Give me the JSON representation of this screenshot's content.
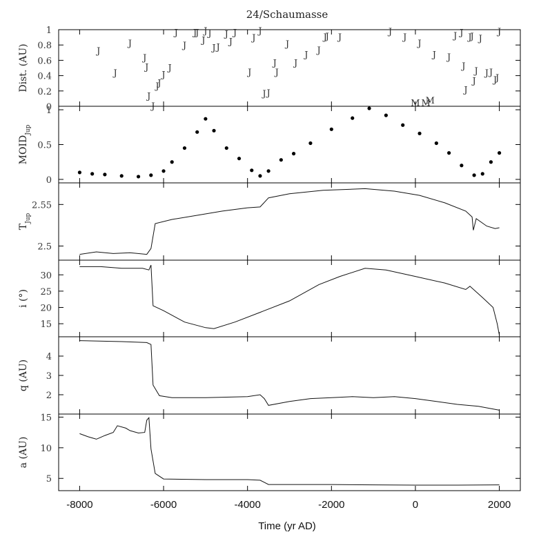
{
  "chart_data": {
    "type": "line",
    "title": "24/Schaumasse",
    "xlabel": "Time (yr AD)",
    "x_ticks": [
      "-8000",
      "-6000",
      "-4000",
      "-2000",
      "0",
      "2000"
    ],
    "xlim": [
      -8500,
      2500
    ],
    "panels": [
      {
        "id": "dist",
        "ylabel": "Dist. (AU)",
        "ylim": [
          0,
          1
        ],
        "yticks": [
          "0",
          "0.2",
          "0.4",
          "0.6",
          "0.8",
          "1"
        ],
        "encounters": [
          {
            "x": -7550,
            "y": 0.73,
            "label": "J"
          },
          {
            "x": -7150,
            "y": 0.44,
            "label": "J"
          },
          {
            "x": -6800,
            "y": 0.83,
            "label": "J"
          },
          {
            "x": -6450,
            "y": 0.64,
            "label": "J"
          },
          {
            "x": -6400,
            "y": 0.52,
            "label": "J"
          },
          {
            "x": -6350,
            "y": 0.14,
            "label": "J"
          },
          {
            "x": -6250,
            "y": 0.01,
            "label": "J"
          },
          {
            "x": -6150,
            "y": 0.27,
            "label": "J"
          },
          {
            "x": -6100,
            "y": 0.31,
            "label": "J"
          },
          {
            "x": -6000,
            "y": 0.42,
            "label": "J"
          },
          {
            "x": -5850,
            "y": 0.51,
            "label": "J"
          },
          {
            "x": -5700,
            "y": 0.97,
            "label": "J"
          },
          {
            "x": -5500,
            "y": 0.8,
            "label": "J"
          },
          {
            "x": -5250,
            "y": 0.97,
            "label": "J"
          },
          {
            "x": -5200,
            "y": 0.97,
            "label": "J"
          },
          {
            "x": -5050,
            "y": 0.87,
            "label": "J"
          },
          {
            "x": -5000,
            "y": 0.99,
            "label": "J"
          },
          {
            "x": -4900,
            "y": 0.96,
            "label": "J"
          },
          {
            "x": -4800,
            "y": 0.77,
            "label": "J"
          },
          {
            "x": -4700,
            "y": 0.78,
            "label": "J"
          },
          {
            "x": -4500,
            "y": 0.95,
            "label": "J"
          },
          {
            "x": -4400,
            "y": 0.85,
            "label": "J"
          },
          {
            "x": -4300,
            "y": 0.97,
            "label": "J"
          },
          {
            "x": -3950,
            "y": 0.45,
            "label": "J"
          },
          {
            "x": -3850,
            "y": 0.9,
            "label": "J"
          },
          {
            "x": -3700,
            "y": 0.99,
            "label": "J"
          },
          {
            "x": -3600,
            "y": 0.17,
            "label": "J"
          },
          {
            "x": -3500,
            "y": 0.18,
            "label": "J"
          },
          {
            "x": -3350,
            "y": 0.57,
            "label": "J"
          },
          {
            "x": -3300,
            "y": 0.45,
            "label": "J"
          },
          {
            "x": -3050,
            "y": 0.82,
            "label": "J"
          },
          {
            "x": -2850,
            "y": 0.57,
            "label": "J"
          },
          {
            "x": -2600,
            "y": 0.68,
            "label": "J"
          },
          {
            "x": -2300,
            "y": 0.74,
            "label": "J"
          },
          {
            "x": -2150,
            "y": 0.91,
            "label": "J"
          },
          {
            "x": -2100,
            "y": 0.92,
            "label": "J"
          },
          {
            "x": -1800,
            "y": 0.91,
            "label": "J"
          },
          {
            "x": -600,
            "y": 0.98,
            "label": "J"
          },
          {
            "x": -250,
            "y": 0.91,
            "label": "J"
          },
          {
            "x": 0,
            "y": 0.05,
            "label": "M"
          },
          {
            "x": 100,
            "y": 0.83,
            "label": "J"
          },
          {
            "x": 250,
            "y": 0.05,
            "label": "M"
          },
          {
            "x": 350,
            "y": 0.08,
            "label": "M"
          },
          {
            "x": 450,
            "y": 0.68,
            "label": "J"
          },
          {
            "x": 800,
            "y": 0.65,
            "label": "J"
          },
          {
            "x": 950,
            "y": 0.93,
            "label": "J"
          },
          {
            "x": 1100,
            "y": 0.97,
            "label": "J"
          },
          {
            "x": 1150,
            "y": 0.53,
            "label": "J"
          },
          {
            "x": 1200,
            "y": 0.22,
            "label": "J"
          },
          {
            "x": 1300,
            "y": 0.91,
            "label": "J"
          },
          {
            "x": 1350,
            "y": 0.92,
            "label": "J"
          },
          {
            "x": 1400,
            "y": 0.34,
            "label": "J"
          },
          {
            "x": 1450,
            "y": 0.47,
            "label": "J"
          },
          {
            "x": 1550,
            "y": 0.89,
            "label": "J"
          },
          {
            "x": 1700,
            "y": 0.44,
            "label": "J"
          },
          {
            "x": 1800,
            "y": 0.45,
            "label": "J"
          },
          {
            "x": 1900,
            "y": 0.35,
            "label": "J"
          },
          {
            "x": 1950,
            "y": 0.38,
            "label": "J"
          },
          {
            "x": 2000,
            "y": 0.98,
            "label": "J"
          }
        ]
      },
      {
        "id": "moid",
        "ylabel": "MOID",
        "ylabel_sub": "Jup",
        "ylim": [
          -0.05,
          1.05
        ],
        "yticks": [
          "0",
          "0.5",
          "1"
        ],
        "style": "points",
        "points": [
          [
            -8000,
            0.1
          ],
          [
            -7700,
            0.08
          ],
          [
            -7400,
            0.07
          ],
          [
            -7000,
            0.05
          ],
          [
            -6600,
            0.04
          ],
          [
            -6300,
            0.06
          ],
          [
            -6000,
            0.12
          ],
          [
            -5800,
            0.25
          ],
          [
            -5500,
            0.45
          ],
          [
            -5200,
            0.68
          ],
          [
            -5000,
            0.87
          ],
          [
            -4800,
            0.7
          ],
          [
            -4500,
            0.45
          ],
          [
            -4200,
            0.3
          ],
          [
            -3900,
            0.13
          ],
          [
            -3700,
            0.05
          ],
          [
            -3500,
            0.12
          ],
          [
            -3200,
            0.28
          ],
          [
            -2900,
            0.37
          ],
          [
            -2500,
            0.52
          ],
          [
            -2000,
            0.72
          ],
          [
            -1500,
            0.88
          ],
          [
            -1100,
            1.02
          ],
          [
            -700,
            0.92
          ],
          [
            -300,
            0.78
          ],
          [
            100,
            0.66
          ],
          [
            500,
            0.52
          ],
          [
            800,
            0.38
          ],
          [
            1100,
            0.2
          ],
          [
            1400,
            0.06
          ],
          [
            1600,
            0.08
          ],
          [
            1800,
            0.25
          ],
          [
            2000,
            0.38
          ]
        ]
      },
      {
        "id": "tjup",
        "ylabel": "T",
        "ylabel_sub": "Jup",
        "ylim": [
          2.483,
          2.576
        ],
        "yticks": [
          "2.5",
          "2.55"
        ],
        "style": "line",
        "points": [
          [
            -8000,
            2.49
          ],
          [
            -7600,
            2.493
          ],
          [
            -7200,
            2.491
          ],
          [
            -6800,
            2.492
          ],
          [
            -6400,
            2.49
          ],
          [
            -6300,
            2.497
          ],
          [
            -6200,
            2.527
          ],
          [
            -5800,
            2.532
          ],
          [
            -5200,
            2.537
          ],
          [
            -4600,
            2.542
          ],
          [
            -4000,
            2.546
          ],
          [
            -3700,
            2.547
          ],
          [
            -3500,
            2.558
          ],
          [
            -3000,
            2.563
          ],
          [
            -2200,
            2.567
          ],
          [
            -1200,
            2.569
          ],
          [
            -500,
            2.566
          ],
          [
            100,
            2.561
          ],
          [
            700,
            2.552
          ],
          [
            1200,
            2.542
          ],
          [
            1350,
            2.535
          ],
          [
            1380,
            2.519
          ],
          [
            1450,
            2.533
          ],
          [
            1700,
            2.524
          ],
          [
            1900,
            2.521
          ],
          [
            2000,
            2.522
          ]
        ]
      },
      {
        "id": "incl",
        "ylabel": "i (°)",
        "ylim": [
          11,
          34.5
        ],
        "yticks": [
          "15",
          "20",
          "25",
          "30"
        ],
        "style": "line",
        "points": [
          [
            -8000,
            32.5
          ],
          [
            -7500,
            32.5
          ],
          [
            -7000,
            32.0
          ],
          [
            -6500,
            32.0
          ],
          [
            -6350,
            31.5
          ],
          [
            -6300,
            33.0
          ],
          [
            -6250,
            20.5
          ],
          [
            -6000,
            19.0
          ],
          [
            -5500,
            15.5
          ],
          [
            -5000,
            13.8
          ],
          [
            -4800,
            13.5
          ],
          [
            -4300,
            15.5
          ],
          [
            -3700,
            18.5
          ],
          [
            -3000,
            22.0
          ],
          [
            -2300,
            27.0
          ],
          [
            -1800,
            29.5
          ],
          [
            -1200,
            32.0
          ],
          [
            -700,
            31.5
          ],
          [
            0,
            29.5
          ],
          [
            700,
            27.5
          ],
          [
            1200,
            25.5
          ],
          [
            1300,
            26.5
          ],
          [
            1600,
            23.0
          ],
          [
            1850,
            20.0
          ],
          [
            1950,
            15.0
          ],
          [
            2000,
            11.5
          ]
        ]
      },
      {
        "id": "q",
        "ylabel": "q (AU)",
        "ylim": [
          1,
          5
        ],
        "yticks": [
          "2",
          "3",
          "4"
        ],
        "style": "line",
        "points": [
          [
            -8000,
            4.8
          ],
          [
            -7000,
            4.75
          ],
          [
            -6400,
            4.7
          ],
          [
            -6300,
            4.6
          ],
          [
            -6250,
            2.5
          ],
          [
            -6100,
            1.95
          ],
          [
            -5800,
            1.85
          ],
          [
            -5000,
            1.85
          ],
          [
            -4000,
            1.9
          ],
          [
            -3700,
            2.0
          ],
          [
            -3600,
            1.8
          ],
          [
            -3500,
            1.45
          ],
          [
            -3000,
            1.65
          ],
          [
            -2500,
            1.8
          ],
          [
            -2000,
            1.85
          ],
          [
            -1500,
            1.9
          ],
          [
            -1000,
            1.85
          ],
          [
            -500,
            1.9
          ],
          [
            0,
            1.8
          ],
          [
            500,
            1.65
          ],
          [
            1000,
            1.5
          ],
          [
            1500,
            1.4
          ],
          [
            2000,
            1.2
          ]
        ]
      },
      {
        "id": "a",
        "ylabel": "a (AU)",
        "ylim": [
          3,
          15.5
        ],
        "yticks": [
          "5",
          "10",
          "15"
        ],
        "style": "line",
        "points": [
          [
            -8000,
            12.3
          ],
          [
            -7800,
            11.8
          ],
          [
            -7600,
            11.4
          ],
          [
            -7400,
            12.0
          ],
          [
            -7200,
            12.5
          ],
          [
            -7100,
            13.6
          ],
          [
            -6900,
            13.2
          ],
          [
            -6800,
            12.8
          ],
          [
            -6600,
            12.4
          ],
          [
            -6450,
            12.5
          ],
          [
            -6400,
            14.5
          ],
          [
            -6350,
            14.9
          ],
          [
            -6300,
            9.8
          ],
          [
            -6200,
            5.8
          ],
          [
            -6000,
            4.9
          ],
          [
            -5000,
            4.8
          ],
          [
            -4000,
            4.8
          ],
          [
            -3700,
            4.7
          ],
          [
            -3500,
            4.0
          ],
          [
            -3000,
            4.0
          ],
          [
            -2000,
            4.0
          ],
          [
            -1000,
            3.95
          ],
          [
            0,
            3.9
          ],
          [
            1000,
            3.9
          ],
          [
            2000,
            3.95
          ]
        ]
      }
    ]
  }
}
